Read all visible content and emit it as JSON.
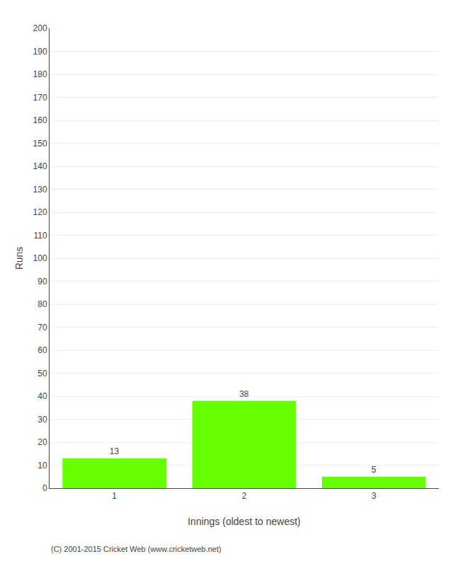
{
  "chart_data": {
    "type": "bar",
    "categories": [
      "1",
      "2",
      "3"
    ],
    "values": [
      13,
      38,
      5
    ],
    "color": "#66ff00",
    "xlabel": "Innings (oldest to newest)",
    "ylabel": "Runs",
    "ylim": [
      0,
      200
    ],
    "yticks": [
      0,
      10,
      20,
      30,
      40,
      50,
      60,
      70,
      80,
      90,
      100,
      110,
      120,
      130,
      140,
      150,
      160,
      170,
      180,
      190,
      200
    ],
    "grid": true,
    "data_labels": true,
    "annotations": [
      "(C) 2001-2015 Cricket Web (www.cricketweb.net)"
    ]
  }
}
